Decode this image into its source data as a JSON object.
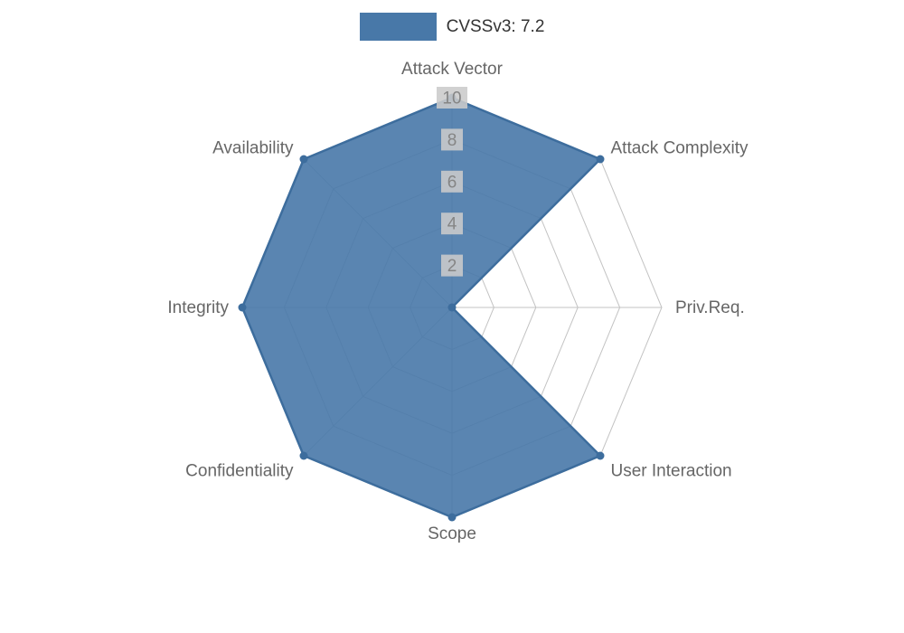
{
  "legend": {
    "label": "CVSSv3: 7.2",
    "swatch_color": "#4878a8"
  },
  "chart_data": {
    "type": "radar",
    "title": "CVSSv3: 7.2",
    "categories": [
      "Attack Vector",
      "Attack Complexity",
      "Priv.Req.",
      "User Interaction",
      "Scope",
      "Confidentiality",
      "Integrity",
      "Availability"
    ],
    "series": [
      {
        "name": "CVSSv3: 7.2",
        "values": [
          10,
          10,
          0,
          10,
          10,
          10,
          10,
          10
        ]
      }
    ],
    "ticks": [
      2,
      4,
      6,
      8,
      10
    ],
    "rmax": 10,
    "grid": true,
    "legend_position": "top",
    "fill_color": "#4878a8",
    "fill_opacity": 0.9,
    "stroke_color": "#3d6d9d",
    "grid_color": "#c3c3c3",
    "tick_backdrop_color": "#cbcbcb",
    "tick_label_color": "#858585",
    "axis_label_color": "#666666"
  }
}
